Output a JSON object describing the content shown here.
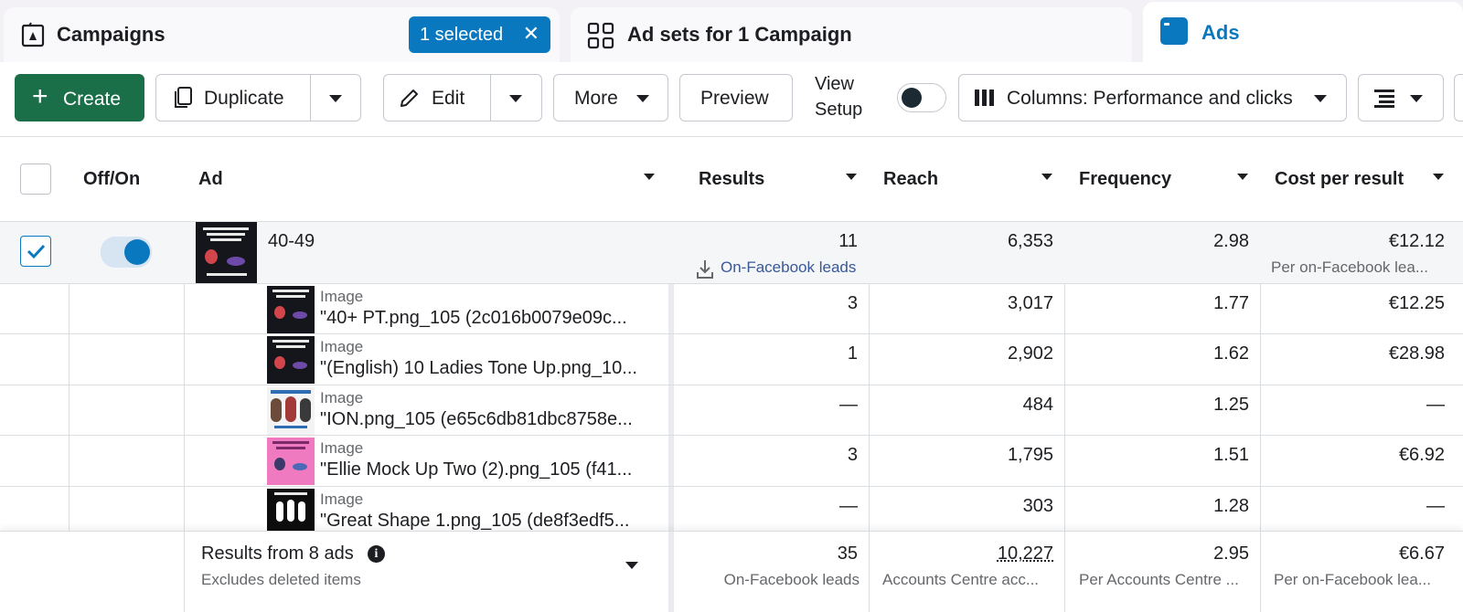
{
  "tabs": {
    "campaigns": {
      "title": "Campaigns",
      "selected_label": "1 selected"
    },
    "adsets": {
      "title": "Ad sets for 1 Campaign"
    },
    "ads": {
      "title": "Ads"
    }
  },
  "toolbar": {
    "create": "Create",
    "duplicate": "Duplicate",
    "edit": "Edit",
    "more": "More",
    "preview": "Preview",
    "view_setup_line1": "View",
    "view_setup_line2": "Setup",
    "view_setup_on": false,
    "columns": "Columns: Performance and clicks"
  },
  "table": {
    "headers": {
      "offon": "Off/On",
      "ad": "Ad",
      "results": "Results",
      "reach": "Reach",
      "frequency": "Frequency",
      "cost": "Cost per result"
    },
    "main_row": {
      "name": "40-49",
      "checked": true,
      "on": true,
      "results": "11",
      "results_sub": "On-Facebook leads",
      "reach": "6,353",
      "frequency": "2.98",
      "cost": "€12.12",
      "cost_sub": "Per on-Facebook lea..."
    },
    "sub_rows": [
      {
        "type": "Image",
        "name": "\"40+ PT.png_105 (2c016b0079e09c...",
        "results": "3",
        "reach": "3,017",
        "frequency": "1.77",
        "cost": "€12.25"
      },
      {
        "type": "Image",
        "name": "\"(English) 10 Ladies Tone Up.png_10...",
        "results": "1",
        "reach": "2,902",
        "frequency": "1.62",
        "cost": "€28.98"
      },
      {
        "type": "Image",
        "name": "\"ION.png_105 (e65c6db81dbc8758e...",
        "results": "—",
        "reach": "484",
        "frequency": "1.25",
        "cost": "—"
      },
      {
        "type": "Image",
        "name": "\"Ellie Mock Up Two (2).png_105 (f41...",
        "results": "3",
        "reach": "1,795",
        "frequency": "1.51",
        "cost": "€6.92"
      },
      {
        "type": "Image",
        "name": "\"Great Shape 1.png_105 (de8f3edf5...",
        "results": "—",
        "reach": "303",
        "frequency": "1.28",
        "cost": "—"
      }
    ],
    "footer": {
      "title": "Results from 8 ads",
      "subtitle": "Excludes deleted items",
      "results": "35",
      "results_sub": "On-Facebook leads",
      "reach": "10,227",
      "reach_sub": "Accounts Centre acc...",
      "frequency": "2.95",
      "frequency_sub": "Per Accounts Centre ...",
      "cost": "€6.67",
      "cost_sub": "Per on-Facebook lea..."
    }
  },
  "colors": {
    "accent": "#0a78be",
    "create_green": "#1b6f48",
    "link_blue": "#385898"
  }
}
